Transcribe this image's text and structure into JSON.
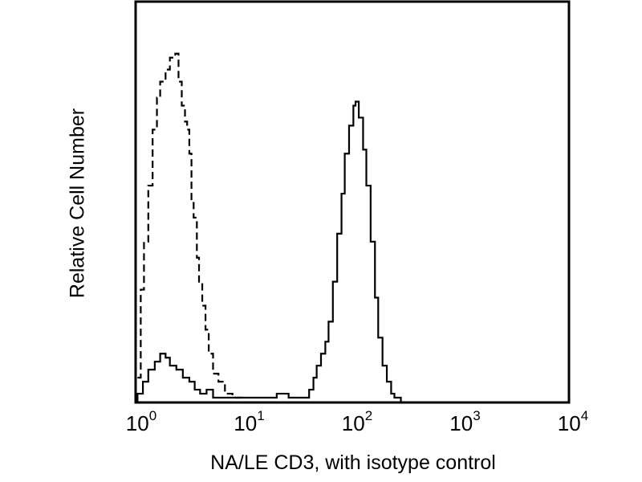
{
  "chart_data": {
    "type": "line",
    "title": "",
    "xlabel": "NA/LE CD3, with isotype control",
    "ylabel": "Relative Cell Number",
    "xscale": "log",
    "xlim_log10": [
      0,
      4
    ],
    "ylim": [
      0,
      100
    ],
    "grid": false,
    "x_ticks": [
      {
        "base": "10",
        "exp": "0",
        "log10": 0
      },
      {
        "base": "10",
        "exp": "1",
        "log10": 1
      },
      {
        "base": "10",
        "exp": "2",
        "log10": 2
      },
      {
        "base": "10",
        "exp": "3",
        "log10": 3
      },
      {
        "base": "10",
        "exp": "4",
        "log10": 4
      }
    ],
    "series": [
      {
        "name": "isotype control",
        "style": "dashed",
        "color": "#000000",
        "log10_x": [
          0.01,
          0.04,
          0.07,
          0.11,
          0.15,
          0.19,
          0.22,
          0.27,
          0.31,
          0.36,
          0.39,
          0.42,
          0.45,
          0.47,
          0.49,
          0.51,
          0.53,
          0.56,
          0.58,
          0.61,
          0.64,
          0.67,
          0.71,
          0.76,
          0.82,
          0.89,
          0.97
        ],
        "y": [
          6,
          28,
          40,
          54,
          68,
          76,
          80,
          83,
          86,
          87,
          80,
          74,
          70,
          68,
          62,
          50,
          46,
          36,
          30,
          24,
          18,
          12,
          7,
          5,
          2,
          1,
          0
        ]
      },
      {
        "name": "NA/LE CD3",
        "style": "solid",
        "color": "#000000",
        "log10_x": [
          0,
          0.01,
          0.06,
          0.11,
          0.17,
          0.22,
          0.27,
          0.31,
          0.37,
          0.43,
          0.49,
          0.54,
          0.59,
          0.65,
          0.71,
          0.82,
          0.97,
          1.19,
          1.3,
          1.41,
          1.56,
          1.6,
          1.64,
          1.67,
          1.71,
          1.75,
          1.78,
          1.82,
          1.86,
          1.9,
          1.93,
          1.97,
          2.01,
          2.03,
          2.06,
          2.1,
          2.13,
          2.17,
          2.21,
          2.24,
          2.28,
          2.32,
          2.36,
          2.39,
          2.45
        ],
        "y": [
          0,
          2,
          5,
          8,
          10,
          12,
          11,
          9,
          8,
          6,
          5,
          3,
          2,
          3,
          1,
          1,
          1,
          1,
          2,
          1,
          1,
          3,
          6,
          9,
          12,
          15,
          20,
          30,
          42,
          52,
          62,
          69,
          74,
          75,
          71,
          63,
          54,
          40,
          26,
          16,
          9,
          5,
          2,
          1,
          0
        ]
      }
    ]
  }
}
